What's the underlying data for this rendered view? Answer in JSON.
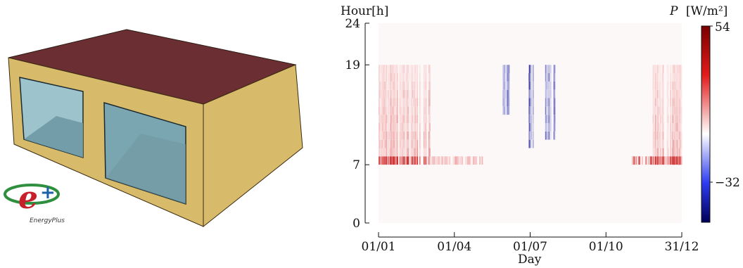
{
  "building": {
    "roof_color": "#6b2f33",
    "wall_color": "#d7b968",
    "window_color": "#7aa9b4",
    "logo": {
      "mark": "e+",
      "text": "EnergyPlus"
    }
  },
  "chart_data": {
    "type": "heatmap",
    "xlabel": "Day",
    "ylabel": "Hour[h]",
    "x_ticks": [
      "01/01",
      "01/04",
      "01/07",
      "01/10",
      "31/12"
    ],
    "y_ticks": [
      "0",
      "7",
      "19",
      "24"
    ],
    "y_range": [
      0,
      24
    ],
    "colorbar": {
      "label_symbol": "P",
      "label_unit": "[W/m²]",
      "max": 54,
      "min": -32,
      "tick_labels": [
        "54",
        "−32"
      ],
      "colormap": "seismic"
    },
    "bands": [
      {
        "day_start": 1,
        "day_end": 62,
        "hour_start": 7,
        "hour_end": 19,
        "sign": "heating",
        "peak": 54
      },
      {
        "day_start": 60,
        "day_end": 125,
        "hour_start": 7,
        "hour_end": 8,
        "sign": "heating",
        "peak": 15
      },
      {
        "day_start": 150,
        "day_end": 157,
        "hour_start": 13,
        "hour_end": 19,
        "sign": "cooling",
        "peak": -18
      },
      {
        "day_start": 180,
        "day_end": 188,
        "hour_start": 9,
        "hour_end": 19,
        "sign": "cooling",
        "peak": -32
      },
      {
        "day_start": 200,
        "day_end": 212,
        "hour_start": 10,
        "hour_end": 19,
        "sign": "cooling",
        "peak": -28
      },
      {
        "day_start": 305,
        "day_end": 365,
        "hour_start": 7,
        "hour_end": 8,
        "sign": "heating",
        "peak": 45
      },
      {
        "day_start": 330,
        "day_end": 365,
        "hour_start": 7,
        "hour_end": 19,
        "sign": "heating",
        "peak": 50
      }
    ]
  }
}
